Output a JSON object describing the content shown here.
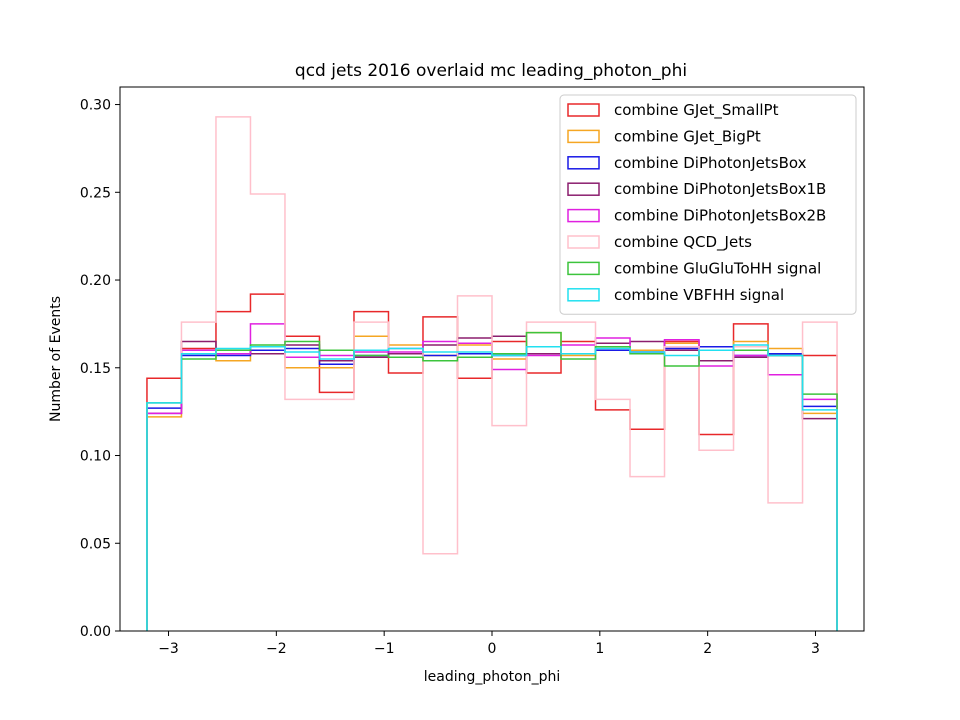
{
  "chart_data": {
    "type": "step-histogram",
    "title": "qcd jets 2016 overlaid mc leading_photon_phi",
    "xlabel": "leading_photon_phi",
    "ylabel": "Number of Events",
    "xlim": [
      -3.45,
      3.45
    ],
    "ylim": [
      0,
      0.31
    ],
    "x_ticks": [
      -3,
      -2,
      -1,
      0,
      1,
      2,
      3
    ],
    "x_tick_labels": [
      "−3",
      "−2",
      "−1",
      "0",
      "1",
      "2",
      "3"
    ],
    "y_ticks": [
      0.0,
      0.05,
      0.1,
      0.15,
      0.2,
      0.25,
      0.3
    ],
    "y_tick_labels": [
      "0.00",
      "0.05",
      "0.10",
      "0.15",
      "0.20",
      "0.25",
      "0.30"
    ],
    "legend_position": "top-right",
    "bin_edges": [
      -3.2,
      -2.88,
      -2.56,
      -2.24,
      -1.92,
      -1.6,
      -1.28,
      -0.96,
      -0.64,
      -0.32,
      0.0,
      0.32,
      0.64,
      0.96,
      1.28,
      1.6,
      1.92,
      2.24,
      2.56,
      2.88,
      3.2
    ],
    "series": [
      {
        "name": "combine GJet_SmallPt",
        "color": "#e8282a",
        "values": [
          0.144,
          0.161,
          0.182,
          0.192,
          0.168,
          0.136,
          0.182,
          0.147,
          0.179,
          0.144,
          0.165,
          0.147,
          0.165,
          0.126,
          0.115,
          0.165,
          0.112,
          0.175,
          0.158,
          0.157
        ]
      },
      {
        "name": "combine GJet_BigPt",
        "color": "#f5a623",
        "values": [
          0.122,
          0.158,
          0.154,
          0.16,
          0.15,
          0.15,
          0.168,
          0.163,
          0.157,
          0.163,
          0.155,
          0.17,
          0.157,
          0.162,
          0.16,
          0.164,
          0.16,
          0.165,
          0.161,
          0.124
        ]
      },
      {
        "name": "combine DiPhotonJetsBox",
        "color": "#1a1ae6",
        "values": [
          0.127,
          0.157,
          0.157,
          0.16,
          0.161,
          0.152,
          0.157,
          0.161,
          0.157,
          0.158,
          0.157,
          0.158,
          0.158,
          0.16,
          0.159,
          0.161,
          0.162,
          0.157,
          0.158,
          0.128
        ]
      },
      {
        "name": "combine DiPhotonJetsBox1B",
        "color": "#8b1e6e",
        "values": [
          0.124,
          0.165,
          0.16,
          0.158,
          0.163,
          0.154,
          0.156,
          0.158,
          0.163,
          0.167,
          0.168,
          0.158,
          0.158,
          0.164,
          0.165,
          0.16,
          0.154,
          0.156,
          0.157,
          0.121
        ]
      },
      {
        "name": "combine DiPhotonJetsBox2B",
        "color": "#e020e0",
        "values": [
          0.124,
          0.16,
          0.158,
          0.175,
          0.156,
          0.157,
          0.159,
          0.159,
          0.165,
          0.164,
          0.149,
          0.157,
          0.163,
          0.167,
          0.159,
          0.166,
          0.151,
          0.157,
          0.146,
          0.132
        ]
      },
      {
        "name": "combine QCD_Jets",
        "color": "#ffc0cb",
        "values": [
          0.13,
          0.176,
          0.293,
          0.249,
          0.132,
          0.132,
          0.176,
          0.161,
          0.044,
          0.191,
          0.117,
          0.176,
          0.176,
          0.132,
          0.088,
          0.162,
          0.103,
          0.162,
          0.073,
          0.176
        ]
      },
      {
        "name": "combine GluGluToHH signal",
        "color": "#3cc43c",
        "values": [
          0.13,
          0.155,
          0.16,
          0.163,
          0.165,
          0.16,
          0.157,
          0.156,
          0.154,
          0.156,
          0.158,
          0.17,
          0.155,
          0.162,
          0.158,
          0.151,
          0.16,
          0.16,
          0.157,
          0.135
        ]
      },
      {
        "name": "combine VBFHH signal",
        "color": "#22e0f0",
        "values": [
          0.13,
          0.158,
          0.161,
          0.162,
          0.159,
          0.155,
          0.16,
          0.161,
          0.159,
          0.159,
          0.157,
          0.162,
          0.158,
          0.161,
          0.159,
          0.157,
          0.16,
          0.163,
          0.157,
          0.126
        ]
      }
    ]
  }
}
